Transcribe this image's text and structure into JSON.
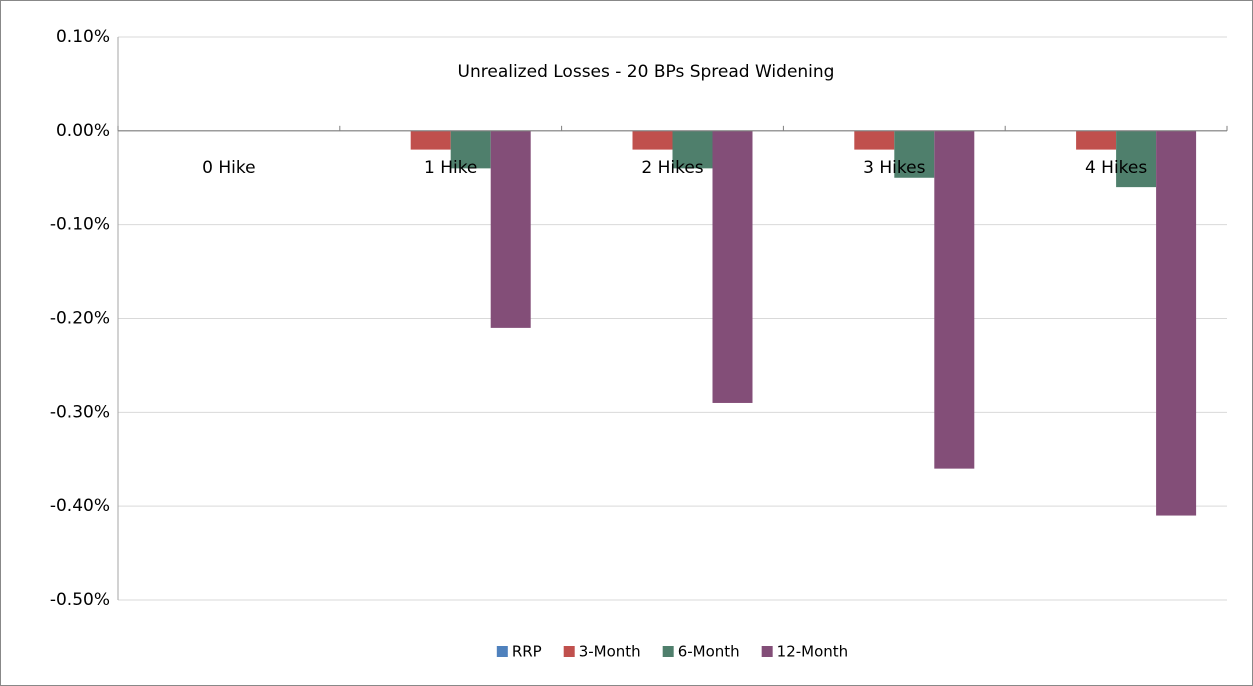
{
  "chart_data": {
    "type": "bar",
    "title": "Unrealized Losses - 20 BPs Spread Widening",
    "categories": [
      "0 Hike",
      "1 Hike",
      "2 Hikes",
      "3 Hikes",
      "4 Hikes"
    ],
    "series": [
      {
        "name": "RRP",
        "color": "#4f81bd",
        "values": [
          0,
          0,
          0,
          0,
          0
        ]
      },
      {
        "name": "3-Month",
        "color": "#c0504d",
        "values": [
          0,
          -0.02,
          -0.02,
          -0.02,
          -0.02
        ]
      },
      {
        "name": "6-Month",
        "color": "#4f7f6c",
        "values": [
          0,
          -0.04,
          -0.04,
          -0.05,
          -0.06
        ]
      },
      {
        "name": "12-Month",
        "color": "#834e78",
        "values": [
          0,
          -0.21,
          -0.29,
          -0.36,
          -0.41
        ]
      }
    ],
    "ylim": [
      -0.5,
      0.1
    ],
    "yticks": [
      {
        "value": -0.5,
        "label": "-0.50%"
      },
      {
        "value": -0.4,
        "label": "-0.40%"
      },
      {
        "value": -0.3,
        "label": "-0.30%"
      },
      {
        "value": -0.2,
        "label": "-0.20%"
      },
      {
        "value": -0.1,
        "label": "-0.10%"
      },
      {
        "value": 0,
        "label": "0.00%"
      },
      {
        "value": 0.1,
        "label": "0.10%"
      }
    ],
    "grid": true,
    "legend": "bottom"
  }
}
